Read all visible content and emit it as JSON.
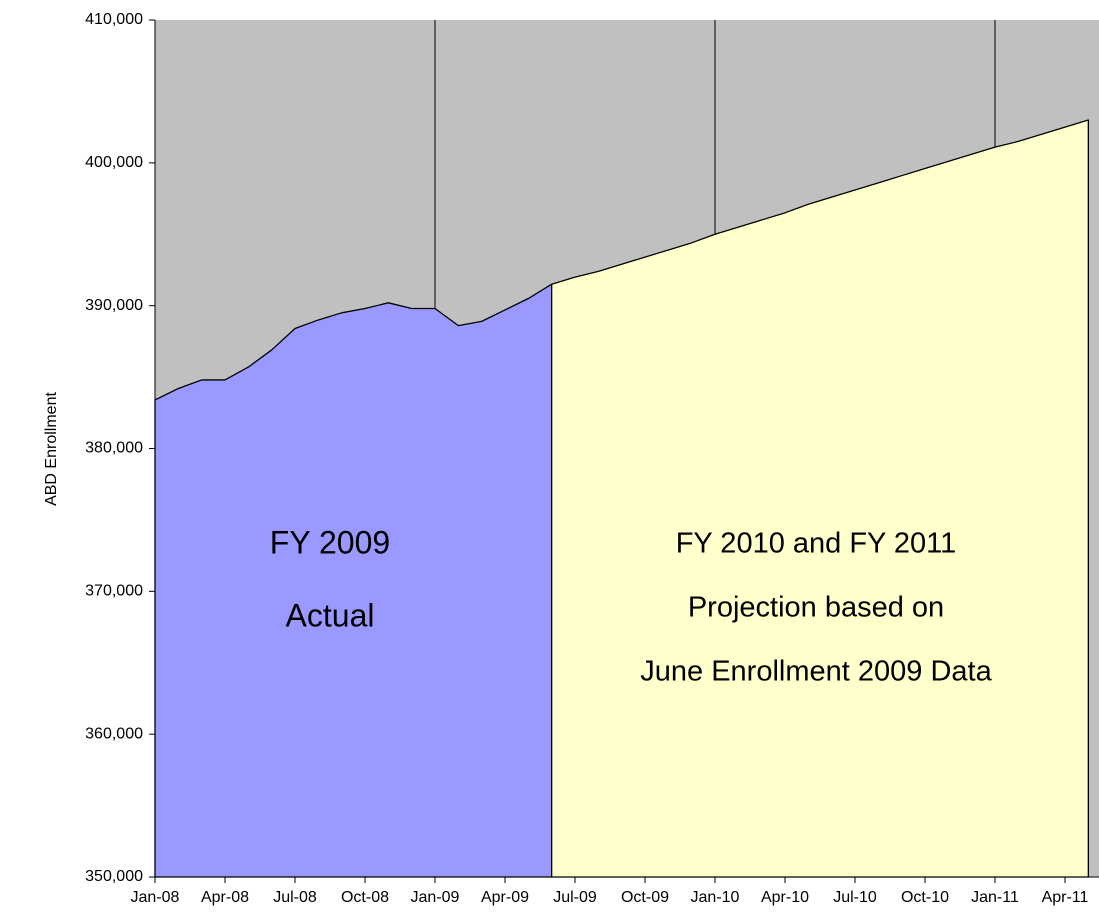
{
  "chart_data": {
    "type": "area",
    "y_label": "ABD Enrollment",
    "categories": [
      "Jan-08",
      null,
      null,
      "Apr-08",
      null,
      null,
      "Jul-08",
      null,
      null,
      "Oct-08",
      null,
      null,
      "Jan-09",
      null,
      null,
      "Apr-09",
      null,
      null,
      "Jul-09",
      null,
      null,
      "Oct-09",
      null,
      null,
      "Jan-10",
      null,
      null,
      "Apr-10",
      null,
      null,
      "Jul-10",
      null,
      null,
      "Oct-10",
      null,
      null,
      "Jan-11",
      null,
      null,
      "Apr-11",
      null
    ],
    "series": [
      {
        "name": "FY 2009 Actual",
        "color": "#9999ff",
        "values": [
          383400,
          384200,
          384800,
          384800,
          385700,
          386900,
          388400,
          389000,
          389500,
          389800,
          390200,
          389800,
          389800,
          388600,
          388900,
          389700,
          390500,
          391500,
          null,
          null,
          null,
          null,
          null,
          null,
          null,
          null,
          null,
          null,
          null,
          null,
          null,
          null,
          null,
          null,
          null,
          null,
          null,
          null,
          null,
          null,
          null
        ]
      },
      {
        "name": "FY 2010 and FY 2011 Projection",
        "color": "#ffffcc",
        "values": [
          null,
          null,
          null,
          null,
          null,
          null,
          null,
          null,
          null,
          null,
          null,
          null,
          null,
          null,
          null,
          null,
          null,
          391500,
          392000,
          392400,
          392900,
          393400,
          393900,
          394400,
          395000,
          395500,
          396000,
          396500,
          397100,
          397600,
          398100,
          398600,
          399100,
          399600,
          400100,
          400600,
          401100,
          401500,
          402000,
          402500,
          403000
        ]
      }
    ],
    "annotations": [
      "FY 2009",
      "Actual",
      "FY 2010 and FY 2011",
      "Projection based on",
      "June Enrollment 2009 Data"
    ],
    "plot_background": "#c0c0c0",
    "ylim": [
      350000,
      410000
    ],
    "yticks": [
      {
        "value": 350000,
        "label": "350,000"
      },
      {
        "value": 360000,
        "label": "360,000"
      },
      {
        "value": 370000,
        "label": "370,000"
      },
      {
        "value": 380000,
        "label": "380,000"
      },
      {
        "value": 390000,
        "label": "390,000"
      },
      {
        "value": 400000,
        "label": "400,000"
      },
      {
        "value": 410000,
        "label": "410,000"
      }
    ]
  }
}
